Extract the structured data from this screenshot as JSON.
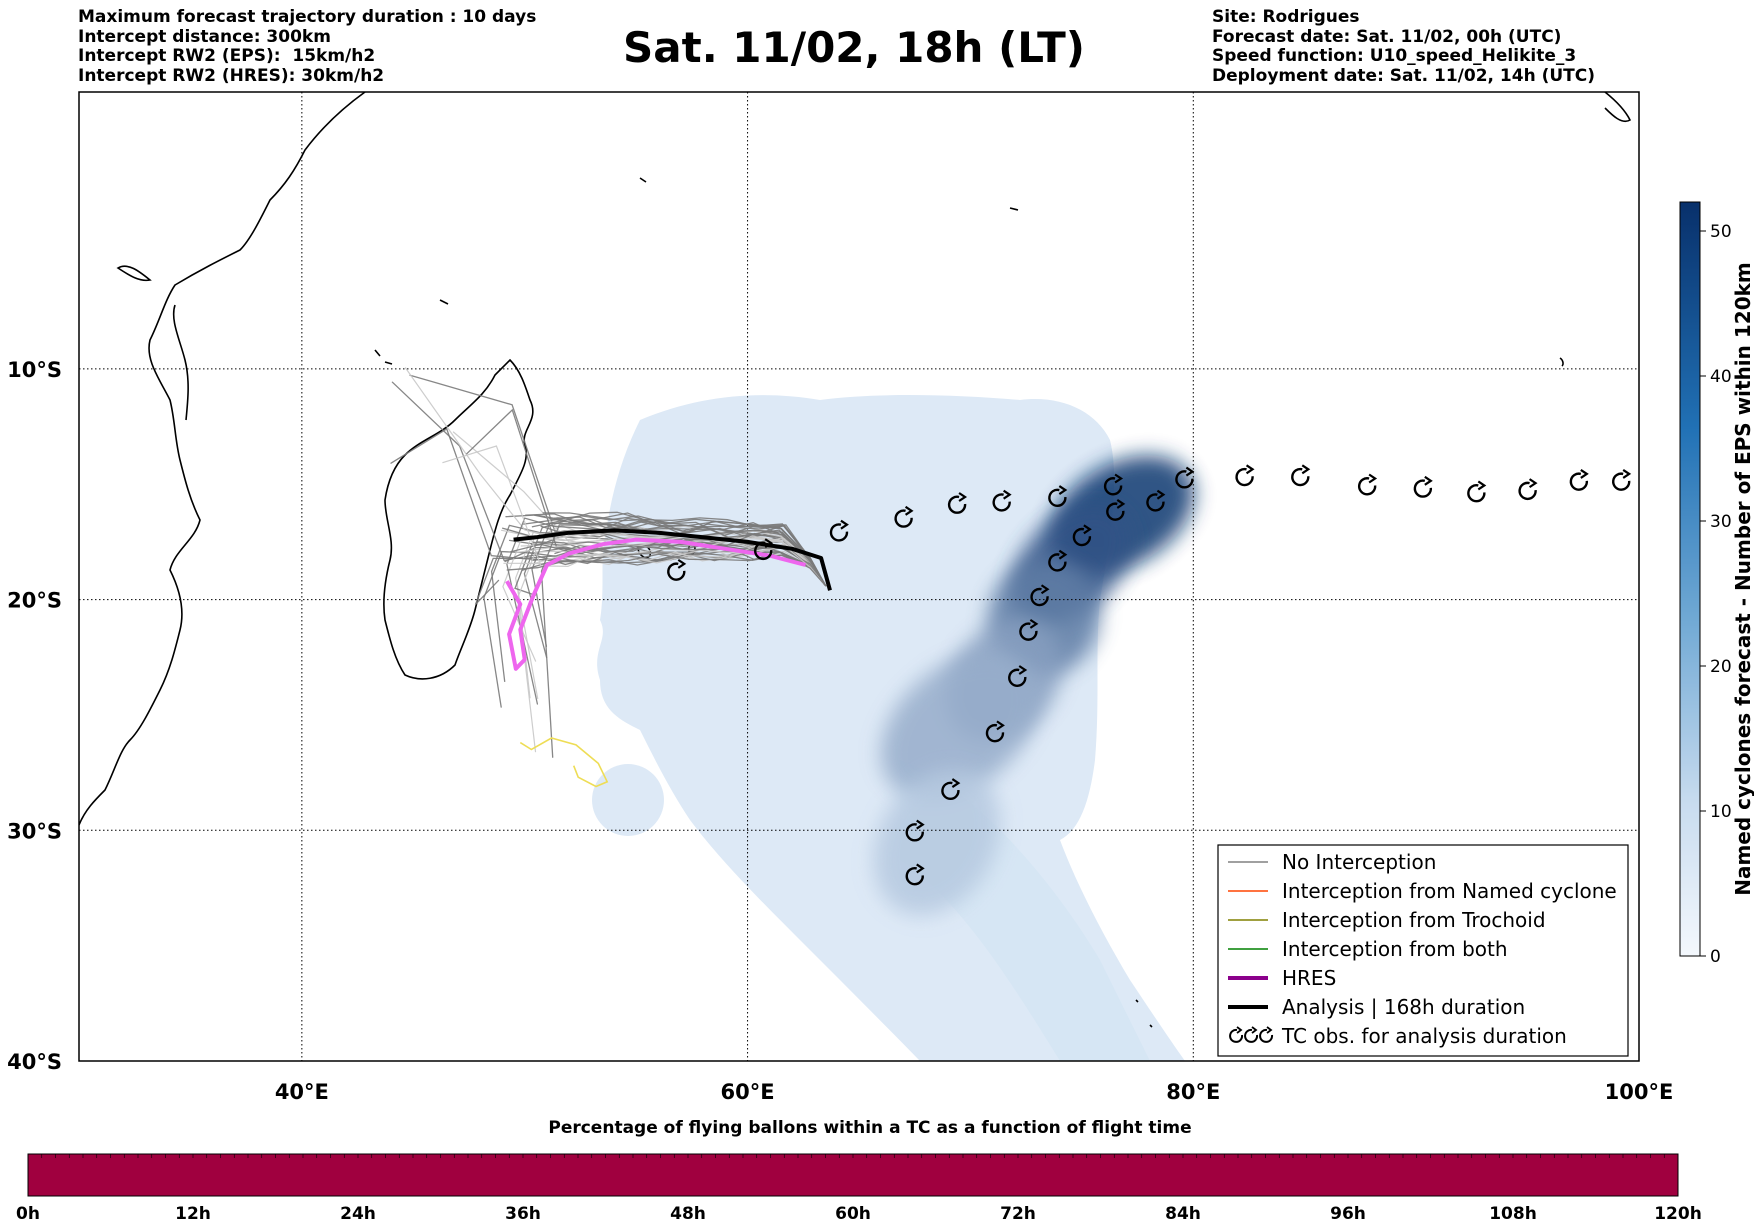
{
  "header": {
    "left_lines": [
      "Maximum forecast trajectory duration : 10 days",
      "Intercept distance: 300km",
      "Intercept RW2 (EPS):  15km/h2",
      "Intercept RW2 (HRES): 30km/h2"
    ],
    "title": "Sat. 11/02, 18h (LT)",
    "right_lines": [
      "Site: Rodrigues",
      "Forecast date: Sat. 11/02, 00h (UTC)",
      "Speed function: U10_speed_Helikite_3",
      "Deployment date: Sat. 11/02, 14h (UTC)"
    ]
  },
  "map": {
    "lon_range": [
      30,
      100
    ],
    "lat_range": [
      -40,
      2
    ],
    "lon_ticks": [
      {
        "value": 40,
        "label": "40°E"
      },
      {
        "value": 60,
        "label": "60°E"
      },
      {
        "value": 80,
        "label": "80°E"
      },
      {
        "value": 100,
        "label": "100°E"
      }
    ],
    "lat_ticks": [
      {
        "value": -10,
        "label": "10°S"
      },
      {
        "value": -20,
        "label": "20°S"
      },
      {
        "value": -30,
        "label": "30°S"
      },
      {
        "value": -40,
        "label": "40°S"
      }
    ],
    "colors": {
      "no_interception": "#808080",
      "named_cyclone": "#ff4500",
      "trochoid": "#808000",
      "both": "#008000",
      "hres": "#ee66ee",
      "analysis": "#000000",
      "eps_light": "#d4e5f5",
      "eps_dark": "#08306b",
      "yellow_track": "#eedd55"
    },
    "analysis_track": [
      [
        49.5,
        -17.4
      ],
      [
        50.5,
        -17.3
      ],
      [
        52,
        -17.1
      ],
      [
        54,
        -17.0
      ],
      [
        56,
        -17.1
      ],
      [
        58,
        -17.3
      ],
      [
        60,
        -17.5
      ],
      [
        62,
        -17.8
      ],
      [
        63.3,
        -18.2
      ],
      [
        63.7,
        -19.6
      ]
    ],
    "hres_track": [
      [
        62.6,
        -18.5
      ],
      [
        61,
        -18.1
      ],
      [
        59,
        -17.8
      ],
      [
        57,
        -17.5
      ],
      [
        55,
        -17.4
      ],
      [
        53.5,
        -17.6
      ],
      [
        52,
        -18.0
      ],
      [
        51,
        -18.5
      ],
      [
        50.4,
        -19.8
      ],
      [
        49.8,
        -21.3
      ],
      [
        50,
        -22.6
      ],
      [
        49.6,
        -23.0
      ],
      [
        49.3,
        -21.5
      ],
      [
        49.8,
        -20.2
      ],
      [
        49.2,
        -19.2
      ]
    ],
    "yellow_track": [
      [
        49.8,
        -26.2
      ],
      [
        50.3,
        -26.5
      ],
      [
        51.2,
        -26.0
      ],
      [
        52.3,
        -26.3
      ],
      [
        53.3,
        -27.1
      ],
      [
        53.7,
        -27.9
      ],
      [
        53.2,
        -28.1
      ],
      [
        52.4,
        -27.7
      ],
      [
        52.2,
        -27.2
      ]
    ],
    "eps_density_blobs": [
      {
        "lon": 76.8,
        "lat": -16.3,
        "rlon": 3.5,
        "rlat": 2.2,
        "rot": -30,
        "level": 50
      },
      {
        "lon": 74.5,
        "lat": -18.5,
        "rlon": 3.2,
        "rlat": 2.0,
        "rot": -45,
        "level": 42
      },
      {
        "lon": 73.3,
        "lat": -20.8,
        "rlon": 2.6,
        "rlat": 2.4,
        "rot": -60,
        "level": 30
      },
      {
        "lon": 71.5,
        "lat": -23.5,
        "rlon": 3.0,
        "rlat": 2.2,
        "rot": -50,
        "level": 20
      },
      {
        "lon": 69.5,
        "lat": -25.5,
        "rlon": 4.0,
        "rlat": 2.6,
        "rot": -40,
        "level": 16
      },
      {
        "lon": 68.5,
        "lat": -30.5,
        "rlon": 3.5,
        "rlat": 2.5,
        "rot": -60,
        "level": 8
      }
    ],
    "tc_observations": [
      [
        56.8,
        -18.8
      ],
      [
        60.7,
        -17.9
      ],
      [
        64.1,
        -17.1
      ],
      [
        67.0,
        -16.5
      ],
      [
        69.4,
        -15.9
      ],
      [
        71.4,
        -15.8
      ],
      [
        73.9,
        -15.6
      ],
      [
        76.4,
        -15.1
      ],
      [
        78.3,
        -15.8
      ],
      [
        79.6,
        -14.8
      ],
      [
        82.3,
        -14.7
      ],
      [
        84.8,
        -14.7
      ],
      [
        87.8,
        -15.1
      ],
      [
        90.3,
        -15.2
      ],
      [
        92.7,
        -15.4
      ],
      [
        95.0,
        -15.3
      ],
      [
        97.3,
        -14.9
      ],
      [
        99.2,
        -14.9
      ],
      [
        76.5,
        -16.2
      ],
      [
        75.0,
        -17.3
      ],
      [
        73.9,
        -18.4
      ],
      [
        73.1,
        -19.9
      ],
      [
        72.6,
        -21.4
      ],
      [
        72.1,
        -23.4
      ],
      [
        71.1,
        -25.8
      ],
      [
        69.1,
        -28.3
      ],
      [
        67.5,
        -30.1
      ],
      [
        67.5,
        -32.0
      ]
    ]
  },
  "legend": {
    "items": [
      {
        "label": "No Interception",
        "kind": "line",
        "color": "#808080",
        "width": 1.5
      },
      {
        "label": "Interception from Named cyclone",
        "kind": "line",
        "color": "#ff4500",
        "width": 1.5
      },
      {
        "label": "Interception from Trochoid",
        "kind": "line",
        "color": "#808000",
        "width": 1.5
      },
      {
        "label": "Interception from both",
        "kind": "line",
        "color": "#008000",
        "width": 1.5
      },
      {
        "label": "HRES",
        "kind": "line",
        "color": "#8b008b",
        "width": 4
      },
      {
        "label": "Analysis | 168h duration",
        "kind": "line",
        "color": "#000000",
        "width": 4
      },
      {
        "label": "TC obs. for analysis duration",
        "kind": "markers",
        "color": "#000000",
        "width": 2
      }
    ]
  },
  "right_colorbar": {
    "label": "Named cyclones forecast - Number of EPS within 120km",
    "min": 0,
    "max": 52,
    "ticks": [
      {
        "value": 0,
        "label": "0"
      },
      {
        "value": 10,
        "label": "10"
      },
      {
        "value": 20,
        "label": "20"
      },
      {
        "value": 30,
        "label": "30"
      },
      {
        "value": 40,
        "label": "40"
      },
      {
        "value": 50,
        "label": "50"
      }
    ]
  },
  "bottom_colorbar": {
    "title": "Percentage of flying ballons within a TC as a function of flight time",
    "color": "#a0003f",
    "ticks": [
      "0h",
      "12h",
      "24h",
      "36h",
      "48h",
      "60h",
      "72h",
      "84h",
      "96h",
      "108h",
      "120h"
    ]
  }
}
